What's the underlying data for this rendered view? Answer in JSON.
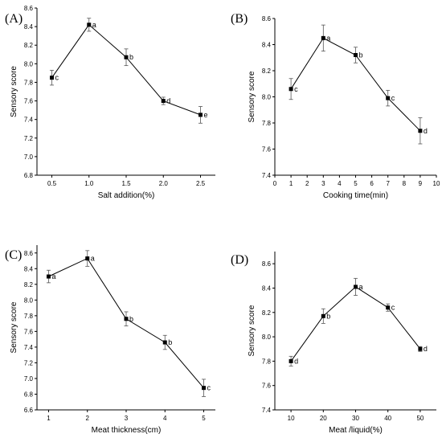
{
  "chart_data": [
    {
      "type": "line",
      "panel_label": "(A)",
      "xlabel": "Salt addition(%)",
      "ylabel": "Sensory score",
      "xlim": [
        0.3,
        2.7
      ],
      "ylim": [
        6.8,
        8.6
      ],
      "xticks": [
        0.5,
        1.0,
        1.5,
        2.0,
        2.5
      ],
      "xtick_labels": [
        "0.5",
        "1.0",
        "1.5",
        "2.0",
        "2.5"
      ],
      "yticks": [
        6.8,
        7.0,
        7.2,
        7.4,
        7.6,
        7.8,
        8.0,
        8.2,
        8.4,
        8.6
      ],
      "ytick_labels": [
        "6.8",
        "7.0",
        "7.2",
        "7.4",
        "7.6",
        "7.8",
        "8.0",
        "8.2",
        "8.4",
        "8.6"
      ],
      "x": [
        0.5,
        1.0,
        1.5,
        2.0,
        2.5
      ],
      "y": [
        7.85,
        8.42,
        8.07,
        7.6,
        7.45
      ],
      "err": [
        0.08,
        0.07,
        0.09,
        0.04,
        0.09
      ],
      "labels": [
        "c",
        "a",
        "b",
        "d",
        "e"
      ]
    },
    {
      "type": "line",
      "panel_label": "(B)",
      "xlabel": "Cooking time(min)",
      "ylabel": "Sensory score",
      "xlim": [
        0,
        10
      ],
      "ylim": [
        7.4,
        8.6
      ],
      "xticks": [
        0,
        1,
        2,
        3,
        4,
        5,
        6,
        7,
        8,
        9,
        10
      ],
      "xtick_labels": [
        "0",
        "1",
        "2",
        "3",
        "4",
        "5",
        "6",
        "7",
        "8",
        "9",
        "10"
      ],
      "yticks": [
        7.4,
        7.6,
        7.8,
        8.0,
        8.2,
        8.4,
        8.6
      ],
      "ytick_labels": [
        "7.4",
        "7.6",
        "7.8",
        "8.0",
        "8.2",
        "8.4",
        "8.6"
      ],
      "x": [
        1,
        3,
        5,
        7,
        9
      ],
      "y": [
        8.06,
        8.45,
        8.32,
        7.99,
        7.74
      ],
      "err": [
        0.08,
        0.1,
        0.06,
        0.06,
        0.1
      ],
      "labels": [
        "c",
        "a",
        "b",
        "c",
        "d"
      ]
    },
    {
      "type": "line",
      "panel_label": "(C)",
      "xlabel": "Meat thickness(cm)",
      "ylabel": "Sensory score",
      "xlim": [
        0.7,
        5.3
      ],
      "ylim": [
        6.6,
        8.7
      ],
      "xticks": [
        1,
        2,
        3,
        4,
        5
      ],
      "xtick_labels": [
        "1",
        "2",
        "3",
        "4",
        "5"
      ],
      "yticks": [
        6.6,
        6.8,
        7.0,
        7.2,
        7.4,
        7.6,
        7.8,
        8.0,
        8.2,
        8.4,
        8.6
      ],
      "ytick_labels": [
        "6.6",
        "6.8",
        "7.0",
        "7.2",
        "7.4",
        "7.6",
        "7.8",
        "8.0",
        "8.2",
        "8.4",
        "8.6"
      ],
      "x": [
        1,
        2,
        3,
        4,
        5
      ],
      "y": [
        8.3,
        8.53,
        7.76,
        7.46,
        6.88
      ],
      "err": [
        0.08,
        0.1,
        0.09,
        0.09,
        0.11
      ],
      "labels": [
        "a",
        "a",
        "b",
        "b",
        "c"
      ]
    },
    {
      "type": "line",
      "panel_label": "(D)",
      "xlabel": "Meat /liquid(%)",
      "ylabel": "Sensory score",
      "xlim": [
        5,
        55
      ],
      "ylim": [
        7.4,
        8.7
      ],
      "xticks": [
        10,
        20,
        30,
        40,
        50
      ],
      "xtick_labels": [
        "10",
        "20",
        "30",
        "40",
        "50"
      ],
      "yticks": [
        7.4,
        7.6,
        7.8,
        8.0,
        8.2,
        8.4,
        8.6
      ],
      "ytick_labels": [
        "7.4",
        "7.6",
        "7.8",
        "8.0",
        "8.2",
        "8.4",
        "8.6"
      ],
      "x": [
        10,
        20,
        30,
        40,
        50
      ],
      "y": [
        7.8,
        8.17,
        8.41,
        8.24,
        7.9
      ],
      "err": [
        0.04,
        0.06,
        0.07,
        0.03,
        0.02
      ],
      "labels": [
        "d",
        "b",
        "a",
        "c",
        "d"
      ]
    }
  ]
}
